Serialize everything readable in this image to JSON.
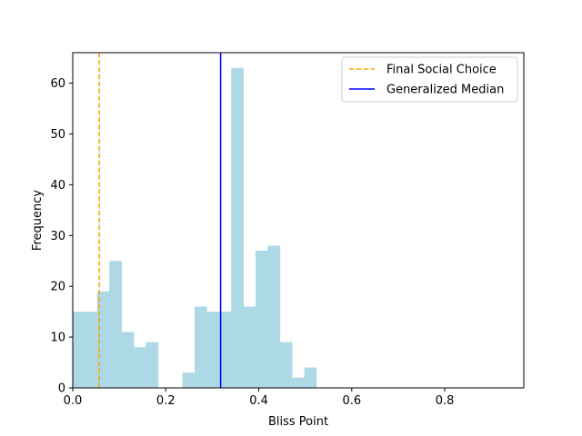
{
  "chart_data": {
    "type": "bar",
    "title": "",
    "xlabel": "Bliss Point",
    "ylabel": "Frequency",
    "xlim": [
      0,
      0.97
    ],
    "ylim": [
      0,
      66
    ],
    "xticks": [
      0.0,
      0.2,
      0.4,
      0.6,
      0.8
    ],
    "xtick_labels": [
      "0.0",
      "0.2",
      "0.4",
      "0.6",
      "0.8"
    ],
    "yticks": [
      0,
      10,
      20,
      30,
      40,
      50,
      60
    ],
    "ytick_labels": [
      "0",
      "10",
      "20",
      "30",
      "40",
      "50",
      "60"
    ],
    "bin_width": 0.0262,
    "bins": [
      {
        "x0": 0.0,
        "count": 15
      },
      {
        "x0": 0.0262,
        "count": 15
      },
      {
        "x0": 0.0524,
        "count": 19
      },
      {
        "x0": 0.0786,
        "count": 25
      },
      {
        "x0": 0.1048,
        "count": 11
      },
      {
        "x0": 0.131,
        "count": 8
      },
      {
        "x0": 0.1572,
        "count": 9
      },
      {
        "x0": 0.2358,
        "count": 3
      },
      {
        "x0": 0.262,
        "count": 16
      },
      {
        "x0": 0.2882,
        "count": 15
      },
      {
        "x0": 0.3144,
        "count": 15
      },
      {
        "x0": 0.3406,
        "count": 63
      },
      {
        "x0": 0.3668,
        "count": 16
      },
      {
        "x0": 0.393,
        "count": 27
      },
      {
        "x0": 0.4192,
        "count": 28
      },
      {
        "x0": 0.4454,
        "count": 9
      },
      {
        "x0": 0.4716,
        "count": 2
      },
      {
        "x0": 0.4978,
        "count": 4
      }
    ],
    "bar_color": "#add8e6",
    "lines": [
      {
        "name": "Final Social Choice",
        "x": 0.057,
        "color": "#ffa500",
        "style": "dashed"
      },
      {
        "name": "Generalized Median",
        "x": 0.318,
        "color": "#0000ff",
        "style": "solid"
      }
    ],
    "legend_position": "top-right",
    "grid": false
  }
}
